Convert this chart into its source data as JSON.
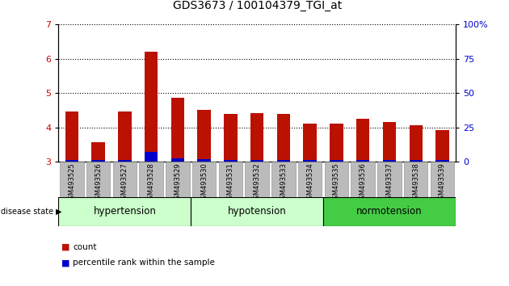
{
  "title": "GDS3673 / 100104379_TGI_at",
  "samples": [
    "GSM493525",
    "GSM493526",
    "GSM493527",
    "GSM493528",
    "GSM493529",
    "GSM493530",
    "GSM493531",
    "GSM493532",
    "GSM493533",
    "GSM493534",
    "GSM493535",
    "GSM493536",
    "GSM493537",
    "GSM493538",
    "GSM493539"
  ],
  "count_values": [
    4.45,
    3.57,
    4.45,
    6.2,
    4.87,
    4.5,
    4.4,
    4.42,
    4.38,
    4.1,
    4.1,
    4.25,
    4.15,
    4.05,
    3.92
  ],
  "percentile_values": [
    3.05,
    3.05,
    3.05,
    3.28,
    3.1,
    3.08,
    3.05,
    3.05,
    3.05,
    3.05,
    3.05,
    3.05,
    3.05,
    3.05,
    3.05
  ],
  "ylim_left": [
    3,
    7
  ],
  "ylim_right": [
    0,
    100
  ],
  "yticks_left": [
    3,
    4,
    5,
    6,
    7
  ],
  "yticks_right": [
    0,
    25,
    50,
    75,
    100
  ],
  "yticklabels_right": [
    "0",
    "25",
    "50",
    "75",
    "100%"
  ],
  "bar_color_red": "#bb1100",
  "bar_color_blue": "#0000cc",
  "bar_width": 0.5,
  "groups": [
    {
      "label": "hypertension",
      "start": 0,
      "end": 5
    },
    {
      "label": "hypotension",
      "start": 5,
      "end": 10
    },
    {
      "label": "normotension",
      "start": 10,
      "end": 15
    }
  ],
  "group_colors": [
    "#ccffcc",
    "#ccffcc",
    "#44cc44"
  ],
  "group_border_color": "#000000",
  "ytick_left_color": "#cc0000",
  "ytick_right_color": "#0000cc",
  "xtick_bg": "#bbbbbb",
  "xtick_border": "#888888",
  "disease_state_label": "disease state",
  "legend_count_label": "count",
  "legend_percentile_label": "percentile rank within the sample",
  "title_fontsize": 10,
  "ytick_fontsize": 8,
  "xtick_fontsize": 6,
  "group_label_fontsize": 8.5,
  "legend_fontsize": 7.5
}
